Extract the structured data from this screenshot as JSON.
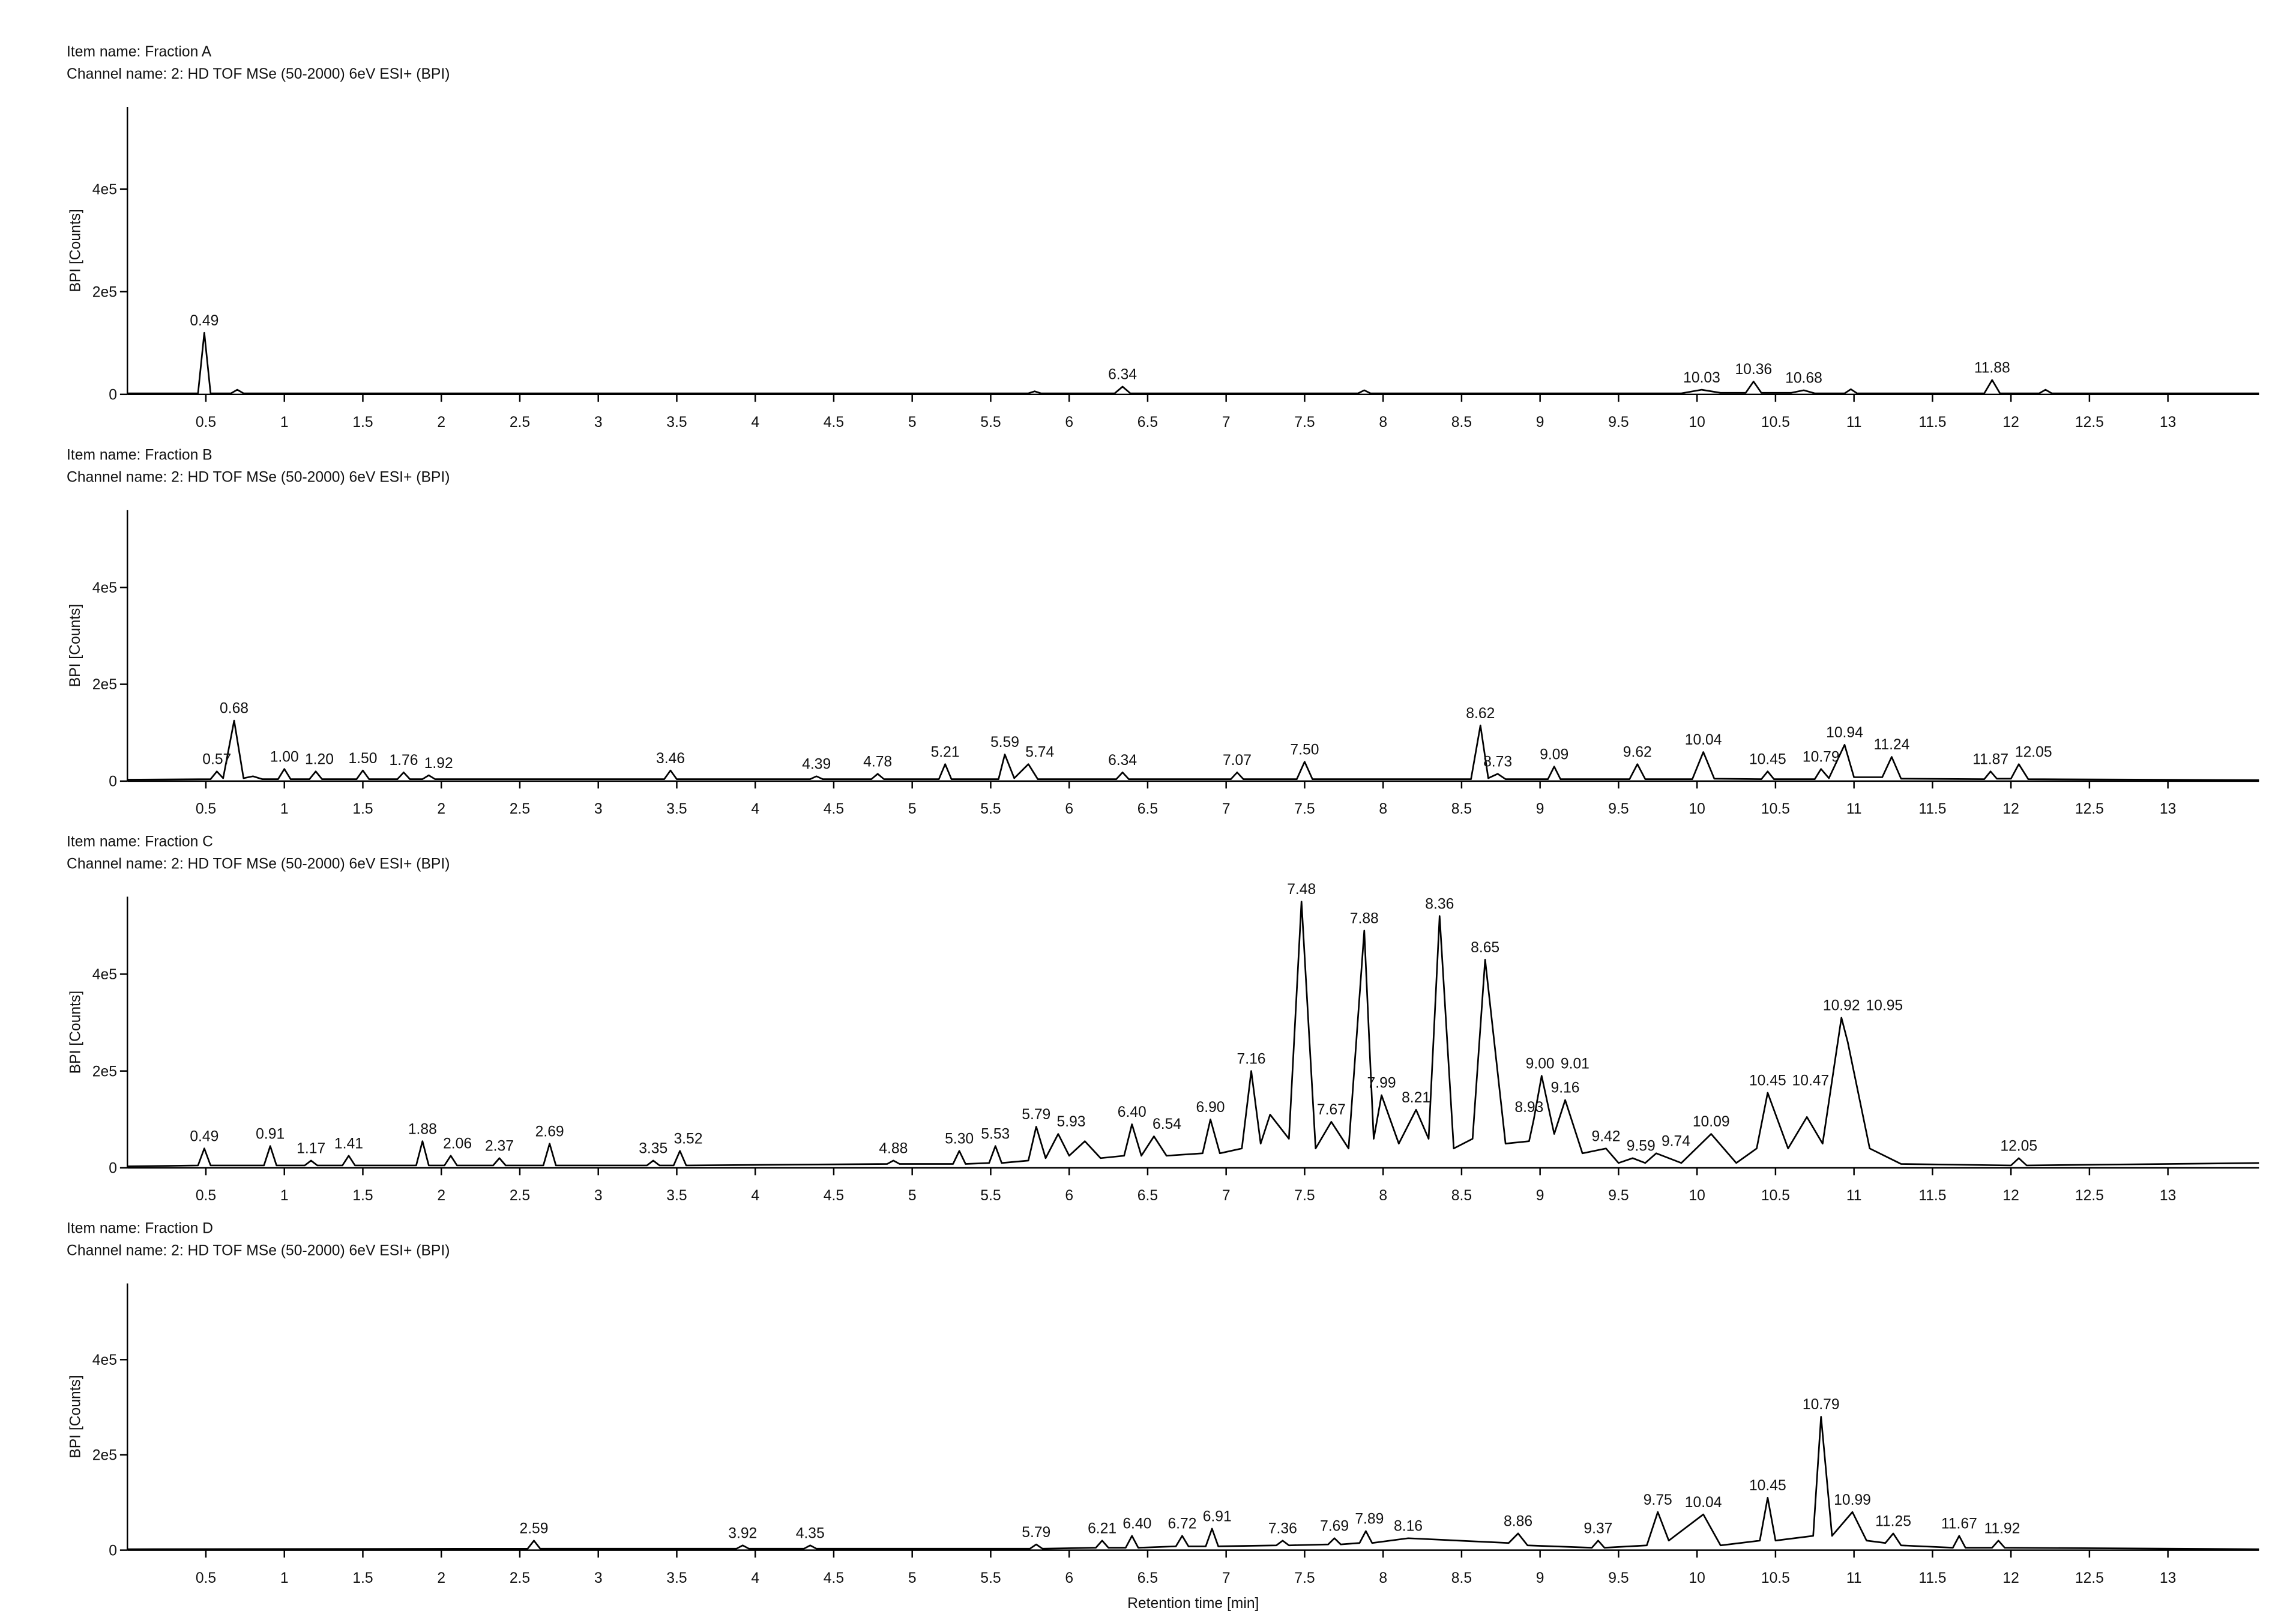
{
  "chart_data": [
    {
      "type": "line",
      "title": "Item name: Fraction A",
      "subtitle": "Channel name: 2: HD TOF MSe (50-2000) 6eV ESI+ (BPI)",
      "y_label": "BPI [Counts]",
      "color": "#000000",
      "xlim": [
        0,
        13.58
      ],
      "ylim": [
        0,
        560000
      ],
      "xticks": [
        0.5,
        1,
        1.5,
        2,
        2.5,
        3,
        3.5,
        4,
        4.5,
        5,
        5.5,
        6,
        6.5,
        7,
        7.5,
        8,
        8.5,
        9,
        9.5,
        10,
        10.5,
        11,
        11.5,
        12,
        12.5,
        13
      ],
      "yticks": [
        0,
        {
          "value": 200000,
          "label": "2e5"
        },
        {
          "value": 400000,
          "label": "4e5"
        }
      ],
      "x": [
        0,
        0.45,
        0.49,
        0.53,
        0.66,
        0.7,
        0.74,
        5.74,
        5.78,
        5.82,
        6.29,
        6.34,
        6.39,
        7.84,
        7.88,
        7.92,
        9.9,
        10.03,
        10.15,
        10.31,
        10.36,
        10.41,
        10.6,
        10.68,
        10.75,
        10.94,
        10.98,
        11.02,
        11.83,
        11.88,
        11.93,
        12.18,
        12.22,
        12.26,
        13.58
      ],
      "values": [
        2000,
        2000,
        120000,
        2000,
        2000,
        9000,
        2000,
        2000,
        6000,
        2000,
        2000,
        15000,
        2000,
        2000,
        8000,
        2000,
        2000,
        9000,
        3000,
        3000,
        25000,
        3000,
        3000,
        8000,
        2000,
        2000,
        10000,
        2000,
        2000,
        28000,
        2000,
        2000,
        9000,
        2000,
        2000
      ],
      "peak_labels": [
        0.49,
        6.34,
        10.03,
        10.36,
        10.68,
        11.88
      ]
    },
    {
      "type": "line",
      "title": "Item name: Fraction B",
      "subtitle": "Channel name: 2: HD TOF MSe (50-2000) 6eV ESI+ (BPI)",
      "y_label": "BPI [Counts]",
      "color": "#000000",
      "xlim": [
        0,
        13.58
      ],
      "ylim": [
        0,
        560000
      ],
      "xticks": [
        0.5,
        1,
        1.5,
        2,
        2.5,
        3,
        3.5,
        4,
        4.5,
        5,
        5.5,
        6,
        6.5,
        7,
        7.5,
        8,
        8.5,
        9,
        9.5,
        10,
        10.5,
        11,
        11.5,
        12,
        12.5,
        13
      ],
      "yticks": [
        0,
        {
          "value": 200000,
          "label": "2e5"
        },
        {
          "value": 400000,
          "label": "4e5"
        }
      ],
      "x": [
        0,
        0.53,
        0.57,
        0.61,
        0.68,
        0.74,
        0.8,
        0.86,
        0.96,
        1.0,
        1.04,
        1.16,
        1.2,
        1.24,
        1.46,
        1.5,
        1.54,
        1.72,
        1.76,
        1.8,
        1.88,
        1.92,
        1.96,
        3.42,
        3.46,
        3.5,
        4.35,
        4.39,
        4.43,
        4.74,
        4.78,
        4.82,
        5.17,
        5.21,
        5.25,
        5.55,
        5.59,
        5.65,
        5.74,
        5.8,
        6.3,
        6.34,
        6.38,
        7.03,
        7.07,
        7.11,
        7.45,
        7.5,
        7.55,
        8.56,
        8.62,
        8.67,
        8.73,
        8.78,
        9.05,
        9.09,
        9.13,
        9.57,
        9.62,
        9.67,
        9.97,
        10.04,
        10.11,
        10.41,
        10.45,
        10.49,
        10.75,
        10.79,
        10.84,
        10.94,
        11.0,
        11.18,
        11.24,
        11.3,
        11.83,
        11.87,
        11.91,
        12.0,
        12.05,
        12.11,
        13.58
      ],
      "values": [
        3000,
        4000,
        20000,
        6000,
        125000,
        6000,
        10000,
        4000,
        4000,
        25000,
        4000,
        4000,
        20000,
        4000,
        4000,
        22000,
        4000,
        4000,
        18000,
        4000,
        4000,
        12000,
        4000,
        4000,
        22000,
        4000,
        4000,
        10000,
        4000,
        4000,
        15000,
        4000,
        4000,
        35000,
        4000,
        4000,
        55000,
        6000,
        35000,
        4000,
        4000,
        18000,
        4000,
        4000,
        18000,
        4000,
        4000,
        40000,
        4000,
        4000,
        115000,
        6000,
        15000,
        4000,
        4000,
        30000,
        4000,
        4000,
        35000,
        4000,
        4000,
        60000,
        5000,
        4000,
        20000,
        4000,
        4000,
        25000,
        6000,
        75000,
        8000,
        8000,
        50000,
        5000,
        4000,
        20000,
        5000,
        5000,
        35000,
        4000,
        2000
      ],
      "peak_labels": [
        0.57,
        0.68,
        {
          "value": 1.0,
          "label": "1.00"
        },
        {
          "value": 1.2,
          "label": "1.20"
        },
        {
          "value": 1.5,
          "label": "1.50"
        },
        1.76,
        1.92,
        3.46,
        4.39,
        4.78,
        5.21,
        5.59,
        5.74,
        6.34,
        7.07,
        {
          "value": 7.5,
          "label": "7.50"
        },
        8.62,
        8.73,
        9.09,
        9.62,
        10.04,
        10.45,
        10.79,
        10.94,
        11.24,
        11.87,
        12.05
      ]
    },
    {
      "type": "line",
      "title": "Item name: Fraction C",
      "subtitle": "Channel name: 2: HD TOF MSe (50-2000) 6eV ESI+ (BPI)",
      "y_label": "BPI [Counts]",
      "color": "#000000",
      "xlim": [
        0,
        13.58
      ],
      "ylim": [
        0,
        560000
      ],
      "xticks": [
        0.5,
        1,
        1.5,
        2,
        2.5,
        3,
        3.5,
        4,
        4.5,
        5,
        5.5,
        6,
        6.5,
        7,
        7.5,
        8,
        8.5,
        9,
        9.5,
        10,
        10.5,
        11,
        11.5,
        12,
        12.5,
        13
      ],
      "yticks": [
        0,
        {
          "value": 200000,
          "label": "2e5"
        },
        {
          "value": 400000,
          "label": "4e5"
        }
      ],
      "x": [
        0,
        0.45,
        0.49,
        0.53,
        0.87,
        0.91,
        0.95,
        1.13,
        1.17,
        1.21,
        1.37,
        1.41,
        1.45,
        1.84,
        1.88,
        1.92,
        2.02,
        2.06,
        2.1,
        2.33,
        2.37,
        2.41,
        2.65,
        2.69,
        2.73,
        3.31,
        3.35,
        3.39,
        3.48,
        3.52,
        3.56,
        4.84,
        4.88,
        4.92,
        5.26,
        5.3,
        5.34,
        5.49,
        5.53,
        5.57,
        5.74,
        5.79,
        5.85,
        5.93,
        6.0,
        6.1,
        6.2,
        6.35,
        6.4,
        6.46,
        6.54,
        6.62,
        6.85,
        6.9,
        6.96,
        7.1,
        7.16,
        7.22,
        7.28,
        7.4,
        7.48,
        7.57,
        7.67,
        7.78,
        7.88,
        7.94,
        7.99,
        8.1,
        8.21,
        8.29,
        8.36,
        8.45,
        8.57,
        8.65,
        8.78,
        8.93,
        8.96,
        9.01,
        9.09,
        9.16,
        9.27,
        9.42,
        9.5,
        9.59,
        9.67,
        9.74,
        9.9,
        10.09,
        10.25,
        10.38,
        10.45,
        10.58,
        10.7,
        10.8,
        10.92,
        10.96,
        11.1,
        11.3,
        12.0,
        12.05,
        12.1,
        13.58
      ],
      "values": [
        3000,
        5000,
        40000,
        5000,
        5000,
        45000,
        5000,
        5000,
        15000,
        5000,
        5000,
        25000,
        5000,
        5000,
        55000,
        5000,
        5000,
        25000,
        5000,
        5000,
        20000,
        5000,
        5000,
        50000,
        5000,
        5000,
        15000,
        5000,
        5000,
        35000,
        5000,
        8000,
        15000,
        8000,
        8000,
        35000,
        8000,
        10000,
        45000,
        10000,
        15000,
        85000,
        20000,
        70000,
        25000,
        55000,
        20000,
        25000,
        90000,
        25000,
        65000,
        25000,
        30000,
        100000,
        30000,
        40000,
        200000,
        50000,
        110000,
        60000,
        550000,
        40000,
        95000,
        40000,
        490000,
        60000,
        150000,
        50000,
        120000,
        60000,
        520000,
        40000,
        60000,
        430000,
        50000,
        55000,
        100000,
        190000,
        70000,
        140000,
        30000,
        40000,
        10000,
        20000,
        10000,
        30000,
        10000,
        70000,
        10000,
        40000,
        155000,
        40000,
        105000,
        50000,
        310000,
        260000,
        40000,
        8000,
        5000,
        20000,
        5000,
        10000
      ],
      "peak_labels": [
        0.49,
        0.91,
        1.17,
        1.41,
        1.88,
        2.06,
        2.37,
        2.69,
        3.35,
        3.52,
        4.88,
        {
          "value": 5.3,
          "label": "5.30"
        },
        5.53,
        5.79,
        5.93,
        {
          "value": 6.4,
          "label": "6.40"
        },
        6.54,
        {
          "value": 6.9,
          "label": "6.90"
        },
        7.16,
        7.48,
        7.67,
        7.88,
        7.99,
        8.21,
        8.36,
        8.65,
        8.93,
        {
          "value": 9.0,
          "label": "9.00"
        },
        9.01,
        9.16,
        9.42,
        9.59,
        9.74,
        10.09,
        10.45,
        10.47,
        10.92,
        10.95,
        12.05
      ]
    },
    {
      "type": "line",
      "title": "Item name: Fraction D",
      "subtitle": "Channel name: 2: HD TOF MSe (50-2000) 6eV ESI+ (BPI)",
      "y_label": "BPI [Counts]",
      "x_label": "Retention time [min]",
      "color": "#000000",
      "xlim": [
        0,
        13.58
      ],
      "ylim": [
        0,
        560000
      ],
      "xticks": [
        0.5,
        1,
        1.5,
        2,
        2.5,
        3,
        3.5,
        4,
        4.5,
        5,
        5.5,
        6,
        6.5,
        7,
        7.5,
        8,
        8.5,
        9,
        9.5,
        10,
        10.5,
        11,
        11.5,
        12,
        12.5,
        13
      ],
      "yticks": [
        0,
        {
          "value": 200000,
          "label": "2e5"
        },
        {
          "value": 400000,
          "label": "4e5"
        }
      ],
      "x": [
        0,
        2.55,
        2.59,
        2.63,
        3.88,
        3.92,
        3.96,
        4.31,
        4.35,
        4.39,
        5.75,
        5.79,
        5.83,
        6.17,
        6.21,
        6.25,
        6.36,
        6.4,
        6.44,
        6.68,
        6.72,
        6.76,
        6.87,
        6.91,
        6.95,
        7.32,
        7.36,
        7.4,
        7.65,
        7.69,
        7.73,
        7.85,
        7.89,
        7.93,
        8.16,
        8.8,
        8.86,
        8.92,
        9.33,
        9.37,
        9.41,
        9.68,
        9.75,
        9.82,
        10.04,
        10.15,
        10.4,
        10.45,
        10.5,
        10.74,
        10.79,
        10.86,
        10.99,
        11.08,
        11.2,
        11.25,
        11.3,
        11.63,
        11.67,
        11.71,
        11.88,
        11.92,
        11.96,
        13.58
      ],
      "values": [
        2000,
        3000,
        20000,
        3000,
        3000,
        10000,
        3000,
        3000,
        10000,
        3000,
        3000,
        12000,
        3000,
        5000,
        20000,
        5000,
        5000,
        30000,
        5000,
        8000,
        30000,
        8000,
        8000,
        45000,
        8000,
        10000,
        20000,
        10000,
        12000,
        25000,
        12000,
        15000,
        40000,
        15000,
        25000,
        15000,
        35000,
        10000,
        5000,
        20000,
        5000,
        10000,
        80000,
        20000,
        75000,
        10000,
        20000,
        110000,
        20000,
        30000,
        280000,
        30000,
        80000,
        20000,
        15000,
        35000,
        10000,
        5000,
        30000,
        5000,
        5000,
        20000,
        5000,
        2000
      ],
      "peak_labels": [
        2.59,
        3.92,
        4.35,
        5.79,
        6.21,
        {
          "value": 6.4,
          "label": "6.40"
        },
        6.72,
        6.91,
        7.36,
        7.69,
        7.89,
        8.16,
        8.86,
        9.37,
        9.75,
        10.04,
        10.45,
        10.79,
        10.99,
        11.25,
        11.67,
        11.92
      ]
    }
  ]
}
